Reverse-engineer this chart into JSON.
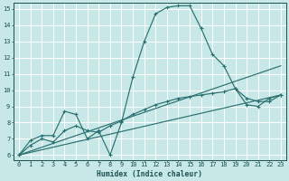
{
  "xlabel": "Humidex (Indice chaleur)",
  "bg_color": "#c8e8e8",
  "grid_color": "#ffffff",
  "line_color": "#2a7070",
  "xlim": [
    -0.5,
    23.5
  ],
  "ylim": [
    5.7,
    15.4
  ],
  "xticks": [
    0,
    1,
    2,
    3,
    4,
    5,
    6,
    7,
    8,
    9,
    10,
    11,
    12,
    13,
    14,
    15,
    16,
    17,
    18,
    19,
    20,
    21,
    22,
    23
  ],
  "yticks": [
    6,
    7,
    8,
    9,
    10,
    11,
    12,
    13,
    14,
    15
  ],
  "series_main_x": [
    0,
    1,
    2,
    3,
    4,
    5,
    6,
    7,
    8,
    9,
    10,
    11,
    12,
    13,
    14,
    15,
    16,
    17,
    18,
    19,
    20,
    21,
    22,
    23
  ],
  "series_main_y": [
    6.0,
    6.9,
    7.2,
    7.2,
    8.7,
    8.5,
    7.0,
    7.5,
    6.0,
    8.0,
    10.8,
    13.0,
    14.7,
    15.1,
    15.2,
    15.2,
    13.8,
    12.2,
    11.5,
    10.1,
    9.1,
    9.0,
    9.5,
    9.7
  ],
  "series_smooth_x": [
    0,
    1,
    2,
    3,
    4,
    5,
    6,
    7,
    8,
    9,
    10,
    11,
    12,
    13,
    14,
    15,
    16,
    17,
    18,
    19,
    20,
    21,
    22,
    23
  ],
  "series_smooth_y": [
    6.0,
    6.6,
    7.0,
    6.8,
    7.5,
    7.8,
    7.5,
    7.4,
    7.8,
    8.1,
    8.5,
    8.8,
    9.1,
    9.3,
    9.5,
    9.6,
    9.7,
    9.8,
    9.9,
    10.1,
    9.5,
    9.3,
    9.3,
    9.7
  ],
  "line1_x": [
    0,
    23
  ],
  "line1_y": [
    6.0,
    9.7
  ],
  "line2_x": [
    0,
    23
  ],
  "line2_y": [
    6.0,
    11.5
  ],
  "xlabel_fontsize": 5.8,
  "tick_fontsize": 5.0
}
